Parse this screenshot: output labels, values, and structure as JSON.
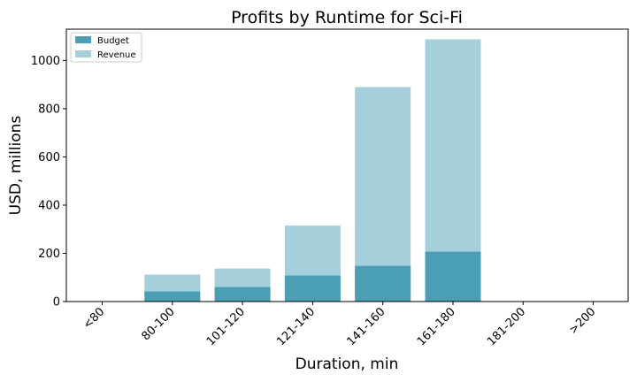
{
  "chart_data": {
    "type": "bar",
    "title": "Profits by Runtime for Sci-Fi",
    "xlabel": "Duration, min",
    "ylabel": "USD, millions",
    "categories": [
      "<80",
      "80-100",
      "101-120",
      "121-140",
      "141-160",
      "161-180",
      "181-200",
      ">200"
    ],
    "series": [
      {
        "name": "Budget",
        "values": [
          0,
          42,
          60,
          108,
          148,
          207,
          0,
          0
        ]
      },
      {
        "name": "Revenue",
        "values": [
          0,
          112,
          137,
          315,
          890,
          1088,
          0,
          0
        ]
      }
    ],
    "ylim": [
      0,
      1130
    ],
    "yticks": [
      0,
      200,
      400,
      600,
      800,
      1000
    ],
    "grid": false,
    "legend": "top-left",
    "colors": {
      "Budget": "#4a9fb5",
      "Revenue": "#a6cfdc"
    }
  }
}
